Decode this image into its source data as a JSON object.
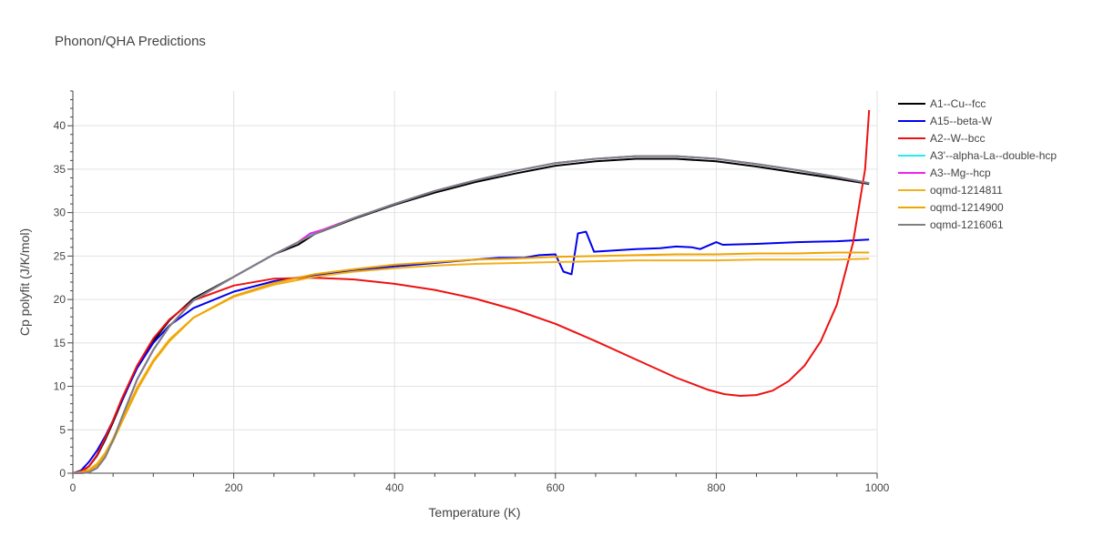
{
  "chart_data": {
    "type": "line",
    "title": "Phonon/QHA Predictions",
    "xlabel": "Temperature (K)",
    "ylabel": "Cp polyfit (J/K/mol)",
    "xlim": [
      0,
      1000
    ],
    "ylim": [
      0,
      44
    ],
    "xticks": [
      0,
      200,
      400,
      600,
      800,
      1000
    ],
    "yticks": [
      0,
      5,
      10,
      15,
      20,
      25,
      30,
      35,
      40
    ],
    "grid": true,
    "legend_position": "right",
    "series": [
      {
        "name": "A1--Cu--fcc",
        "color": "#000000",
        "points": [
          [
            0,
            0
          ],
          [
            10,
            0.1
          ],
          [
            20,
            0.8
          ],
          [
            30,
            2.0
          ],
          [
            40,
            3.8
          ],
          [
            50,
            5.9
          ],
          [
            60,
            8.1
          ],
          [
            80,
            12.2
          ],
          [
            100,
            15.2
          ],
          [
            120,
            17.6
          ],
          [
            150,
            20.1
          ],
          [
            200,
            22.6
          ],
          [
            250,
            25.2
          ],
          [
            280,
            26.3
          ],
          [
            300,
            27.5
          ],
          [
            350,
            29.3
          ],
          [
            400,
            30.9
          ],
          [
            450,
            32.3
          ],
          [
            500,
            33.5
          ],
          [
            550,
            34.5
          ],
          [
            600,
            35.4
          ],
          [
            650,
            35.9
          ],
          [
            700,
            36.2
          ],
          [
            750,
            36.2
          ],
          [
            800,
            35.9
          ],
          [
            850,
            35.3
          ],
          [
            900,
            34.6
          ],
          [
            950,
            33.9
          ],
          [
            990,
            33.3
          ]
        ]
      },
      {
        "name": "A15--beta-W",
        "color": "#0000ee",
        "points": [
          [
            0,
            0
          ],
          [
            10,
            0.3
          ],
          [
            20,
            1.3
          ],
          [
            30,
            2.6
          ],
          [
            40,
            4.2
          ],
          [
            50,
            6.1
          ],
          [
            60,
            8.2
          ],
          [
            80,
            12.1
          ],
          [
            100,
            15.0
          ],
          [
            120,
            17.0
          ],
          [
            150,
            19.0
          ],
          [
            200,
            20.9
          ],
          [
            250,
            22.1
          ],
          [
            300,
            22.8
          ],
          [
            350,
            23.3
          ],
          [
            400,
            23.8
          ],
          [
            450,
            24.2
          ],
          [
            500,
            24.6
          ],
          [
            530,
            24.8
          ],
          [
            560,
            24.8
          ],
          [
            580,
            25.1
          ],
          [
            600,
            25.2
          ],
          [
            610,
            23.2
          ],
          [
            620,
            22.9
          ],
          [
            628,
            27.6
          ],
          [
            638,
            27.8
          ],
          [
            648,
            25.5
          ],
          [
            700,
            25.8
          ],
          [
            730,
            25.9
          ],
          [
            750,
            26.1
          ],
          [
            770,
            26.0
          ],
          [
            780,
            25.8
          ],
          [
            800,
            26.6
          ],
          [
            808,
            26.3
          ],
          [
            850,
            26.4
          ],
          [
            900,
            26.6
          ],
          [
            950,
            26.7
          ],
          [
            990,
            26.9
          ]
        ]
      },
      {
        "name": "A2--W--bcc",
        "color": "#ee1111",
        "points": [
          [
            0,
            0
          ],
          [
            10,
            0.2
          ],
          [
            20,
            0.8
          ],
          [
            30,
            2.1
          ],
          [
            40,
            4.0
          ],
          [
            50,
            6.1
          ],
          [
            60,
            8.4
          ],
          [
            80,
            12.4
          ],
          [
            100,
            15.5
          ],
          [
            120,
            17.7
          ],
          [
            150,
            19.9
          ],
          [
            200,
            21.6
          ],
          [
            250,
            22.4
          ],
          [
            300,
            22.5
          ],
          [
            350,
            22.3
          ],
          [
            400,
            21.8
          ],
          [
            450,
            21.1
          ],
          [
            500,
            20.1
          ],
          [
            550,
            18.8
          ],
          [
            600,
            17.2
          ],
          [
            650,
            15.2
          ],
          [
            700,
            13.1
          ],
          [
            750,
            11.0
          ],
          [
            790,
            9.6
          ],
          [
            810,
            9.1
          ],
          [
            830,
            8.9
          ],
          [
            850,
            9.0
          ],
          [
            870,
            9.5
          ],
          [
            890,
            10.6
          ],
          [
            910,
            12.4
          ],
          [
            930,
            15.2
          ],
          [
            950,
            19.4
          ],
          [
            970,
            26.5
          ],
          [
            985,
            35.0
          ],
          [
            990,
            41.8
          ]
        ]
      },
      {
        "name": "A3'--alpha-La--double-hcp",
        "color": "#22eeee",
        "points": [
          [
            0,
            0
          ],
          [
            10,
            0
          ],
          [
            20,
            0.1
          ],
          [
            30,
            0.6
          ],
          [
            40,
            1.8
          ],
          [
            50,
            3.8
          ],
          [
            60,
            6.2
          ],
          [
            80,
            10.8
          ],
          [
            100,
            14.2
          ],
          [
            120,
            16.9
          ],
          [
            150,
            19.9
          ],
          [
            200,
            22.6
          ],
          [
            250,
            25.2
          ],
          [
            280,
            26.6
          ],
          [
            300,
            27.6
          ],
          [
            350,
            29.4
          ],
          [
            400,
            31.0
          ],
          [
            450,
            32.5
          ],
          [
            500,
            33.7
          ],
          [
            550,
            34.8
          ],
          [
            600,
            35.7
          ],
          [
            650,
            36.2
          ],
          [
            700,
            36.5
          ],
          [
            750,
            36.5
          ],
          [
            800,
            36.2
          ],
          [
            850,
            35.6
          ],
          [
            900,
            34.9
          ],
          [
            950,
            34.1
          ],
          [
            990,
            33.4
          ]
        ]
      },
      {
        "name": "A3--Mg--hcp",
        "color": "#ee22ee",
        "points": [
          [
            0,
            0
          ],
          [
            10,
            0
          ],
          [
            20,
            0.1
          ],
          [
            30,
            0.6
          ],
          [
            40,
            1.8
          ],
          [
            50,
            3.8
          ],
          [
            60,
            6.2
          ],
          [
            80,
            10.8
          ],
          [
            100,
            14.2
          ],
          [
            120,
            16.9
          ],
          [
            150,
            19.9
          ],
          [
            200,
            22.6
          ],
          [
            250,
            25.2
          ],
          [
            280,
            26.6
          ],
          [
            295,
            27.6
          ],
          [
            310,
            28.0
          ],
          [
            350,
            29.4
          ],
          [
            400,
            31.0
          ],
          [
            450,
            32.5
          ],
          [
            500,
            33.7
          ],
          [
            550,
            34.8
          ],
          [
            600,
            35.7
          ],
          [
            650,
            36.2
          ],
          [
            700,
            36.5
          ],
          [
            750,
            36.5
          ],
          [
            800,
            36.2
          ],
          [
            850,
            35.6
          ],
          [
            900,
            34.9
          ],
          [
            950,
            34.1
          ],
          [
            990,
            33.4
          ]
        ]
      },
      {
        "name": "oqmd-1214811",
        "color": "#f0b020",
        "points": [
          [
            0,
            0
          ],
          [
            10,
            0.1
          ],
          [
            20,
            0.4
          ],
          [
            30,
            1.1
          ],
          [
            40,
            2.3
          ],
          [
            50,
            4.0
          ],
          [
            60,
            6.0
          ],
          [
            80,
            9.9
          ],
          [
            100,
            13.0
          ],
          [
            120,
            15.4
          ],
          [
            150,
            17.9
          ],
          [
            200,
            20.3
          ],
          [
            250,
            21.7
          ],
          [
            300,
            22.6
          ],
          [
            350,
            23.2
          ],
          [
            400,
            23.6
          ],
          [
            450,
            23.9
          ],
          [
            500,
            24.1
          ],
          [
            550,
            24.2
          ],
          [
            600,
            24.3
          ],
          [
            650,
            24.4
          ],
          [
            700,
            24.5
          ],
          [
            750,
            24.5
          ],
          [
            800,
            24.5
          ],
          [
            850,
            24.6
          ],
          [
            900,
            24.6
          ],
          [
            950,
            24.6
          ],
          [
            990,
            24.7
          ]
        ]
      },
      {
        "name": "oqmd-1214900",
        "color": "#f0a500",
        "points": [
          [
            0,
            0
          ],
          [
            10,
            0.1
          ],
          [
            20,
            0.3
          ],
          [
            30,
            0.9
          ],
          [
            40,
            2.0
          ],
          [
            50,
            3.7
          ],
          [
            60,
            5.7
          ],
          [
            80,
            9.6
          ],
          [
            100,
            12.8
          ],
          [
            120,
            15.2
          ],
          [
            150,
            17.9
          ],
          [
            200,
            20.4
          ],
          [
            250,
            21.9
          ],
          [
            300,
            22.9
          ],
          [
            350,
            23.5
          ],
          [
            400,
            24.0
          ],
          [
            450,
            24.3
          ],
          [
            500,
            24.6
          ],
          [
            550,
            24.7
          ],
          [
            600,
            24.9
          ],
          [
            650,
            25.0
          ],
          [
            700,
            25.1
          ],
          [
            750,
            25.2
          ],
          [
            800,
            25.2
          ],
          [
            850,
            25.3
          ],
          [
            900,
            25.3
          ],
          [
            950,
            25.4
          ],
          [
            990,
            25.4
          ]
        ]
      },
      {
        "name": "oqmd-1216061",
        "color": "#7f7f7f",
        "points": [
          [
            0,
            0
          ],
          [
            10,
            0
          ],
          [
            20,
            0.1
          ],
          [
            30,
            0.6
          ],
          [
            40,
            1.8
          ],
          [
            50,
            3.8
          ],
          [
            60,
            6.2
          ],
          [
            80,
            10.8
          ],
          [
            100,
            14.2
          ],
          [
            120,
            16.9
          ],
          [
            150,
            19.9
          ],
          [
            200,
            22.6
          ],
          [
            250,
            25.2
          ],
          [
            280,
            26.6
          ],
          [
            300,
            27.5
          ],
          [
            350,
            29.4
          ],
          [
            400,
            31.0
          ],
          [
            450,
            32.5
          ],
          [
            500,
            33.7
          ],
          [
            550,
            34.8
          ],
          [
            600,
            35.7
          ],
          [
            650,
            36.2
          ],
          [
            700,
            36.5
          ],
          [
            750,
            36.5
          ],
          [
            800,
            36.2
          ],
          [
            850,
            35.6
          ],
          [
            900,
            34.9
          ],
          [
            950,
            34.1
          ],
          [
            990,
            33.4
          ]
        ]
      }
    ]
  }
}
